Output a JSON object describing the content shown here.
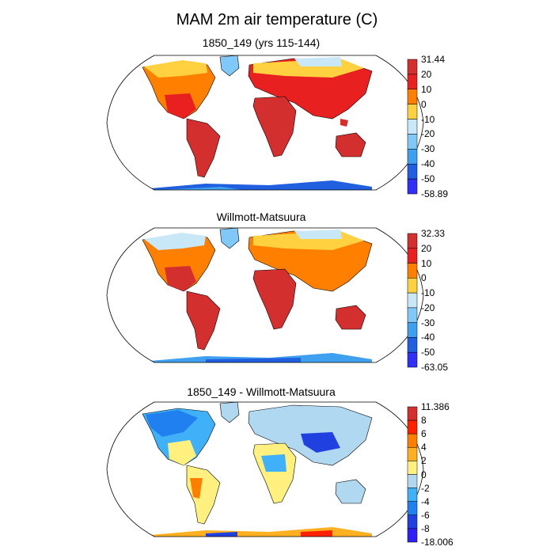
{
  "title": "MAM 2m air temperature (C)",
  "panels": [
    {
      "title": "1850_149 (yrs 115-144)",
      "colorbar": {
        "labels": [
          "31.44",
          "20",
          "10",
          "0",
          "-10",
          "-20",
          "-30",
          "-40",
          "-50",
          "-58.89"
        ],
        "colors": [
          "#d32f2f",
          "#e82020",
          "#ff8000",
          "#ffd040",
          "#c8e8f8",
          "#80c8f8",
          "#40a0f0",
          "#2060e0",
          "#3030f8"
        ]
      }
    },
    {
      "title": "Willmott-Matsuura",
      "colorbar": {
        "labels": [
          "32.33",
          "20",
          "10",
          "0",
          "-10",
          "-20",
          "-30",
          "-40",
          "-50",
          "-63.05"
        ],
        "colors": [
          "#d32f2f",
          "#e82020",
          "#ff8000",
          "#ffd040",
          "#c8e8f8",
          "#80c8f8",
          "#40a0f0",
          "#2060e0",
          "#3030f8"
        ]
      }
    },
    {
      "title": "1850_149 - Willmott-Matsuura",
      "colorbar": {
        "labels": [
          "11.386",
          "8",
          "6",
          "4",
          "2",
          "0",
          "-2",
          "-4",
          "-6",
          "-8",
          "-18.006"
        ],
        "colors": [
          "#d32f2f",
          "#ff2000",
          "#ff8000",
          "#ffb020",
          "#fff080",
          "#b0d8f0",
          "#40b0f8",
          "#2080f0",
          "#2040e0",
          "#3020f8"
        ]
      }
    }
  ]
}
